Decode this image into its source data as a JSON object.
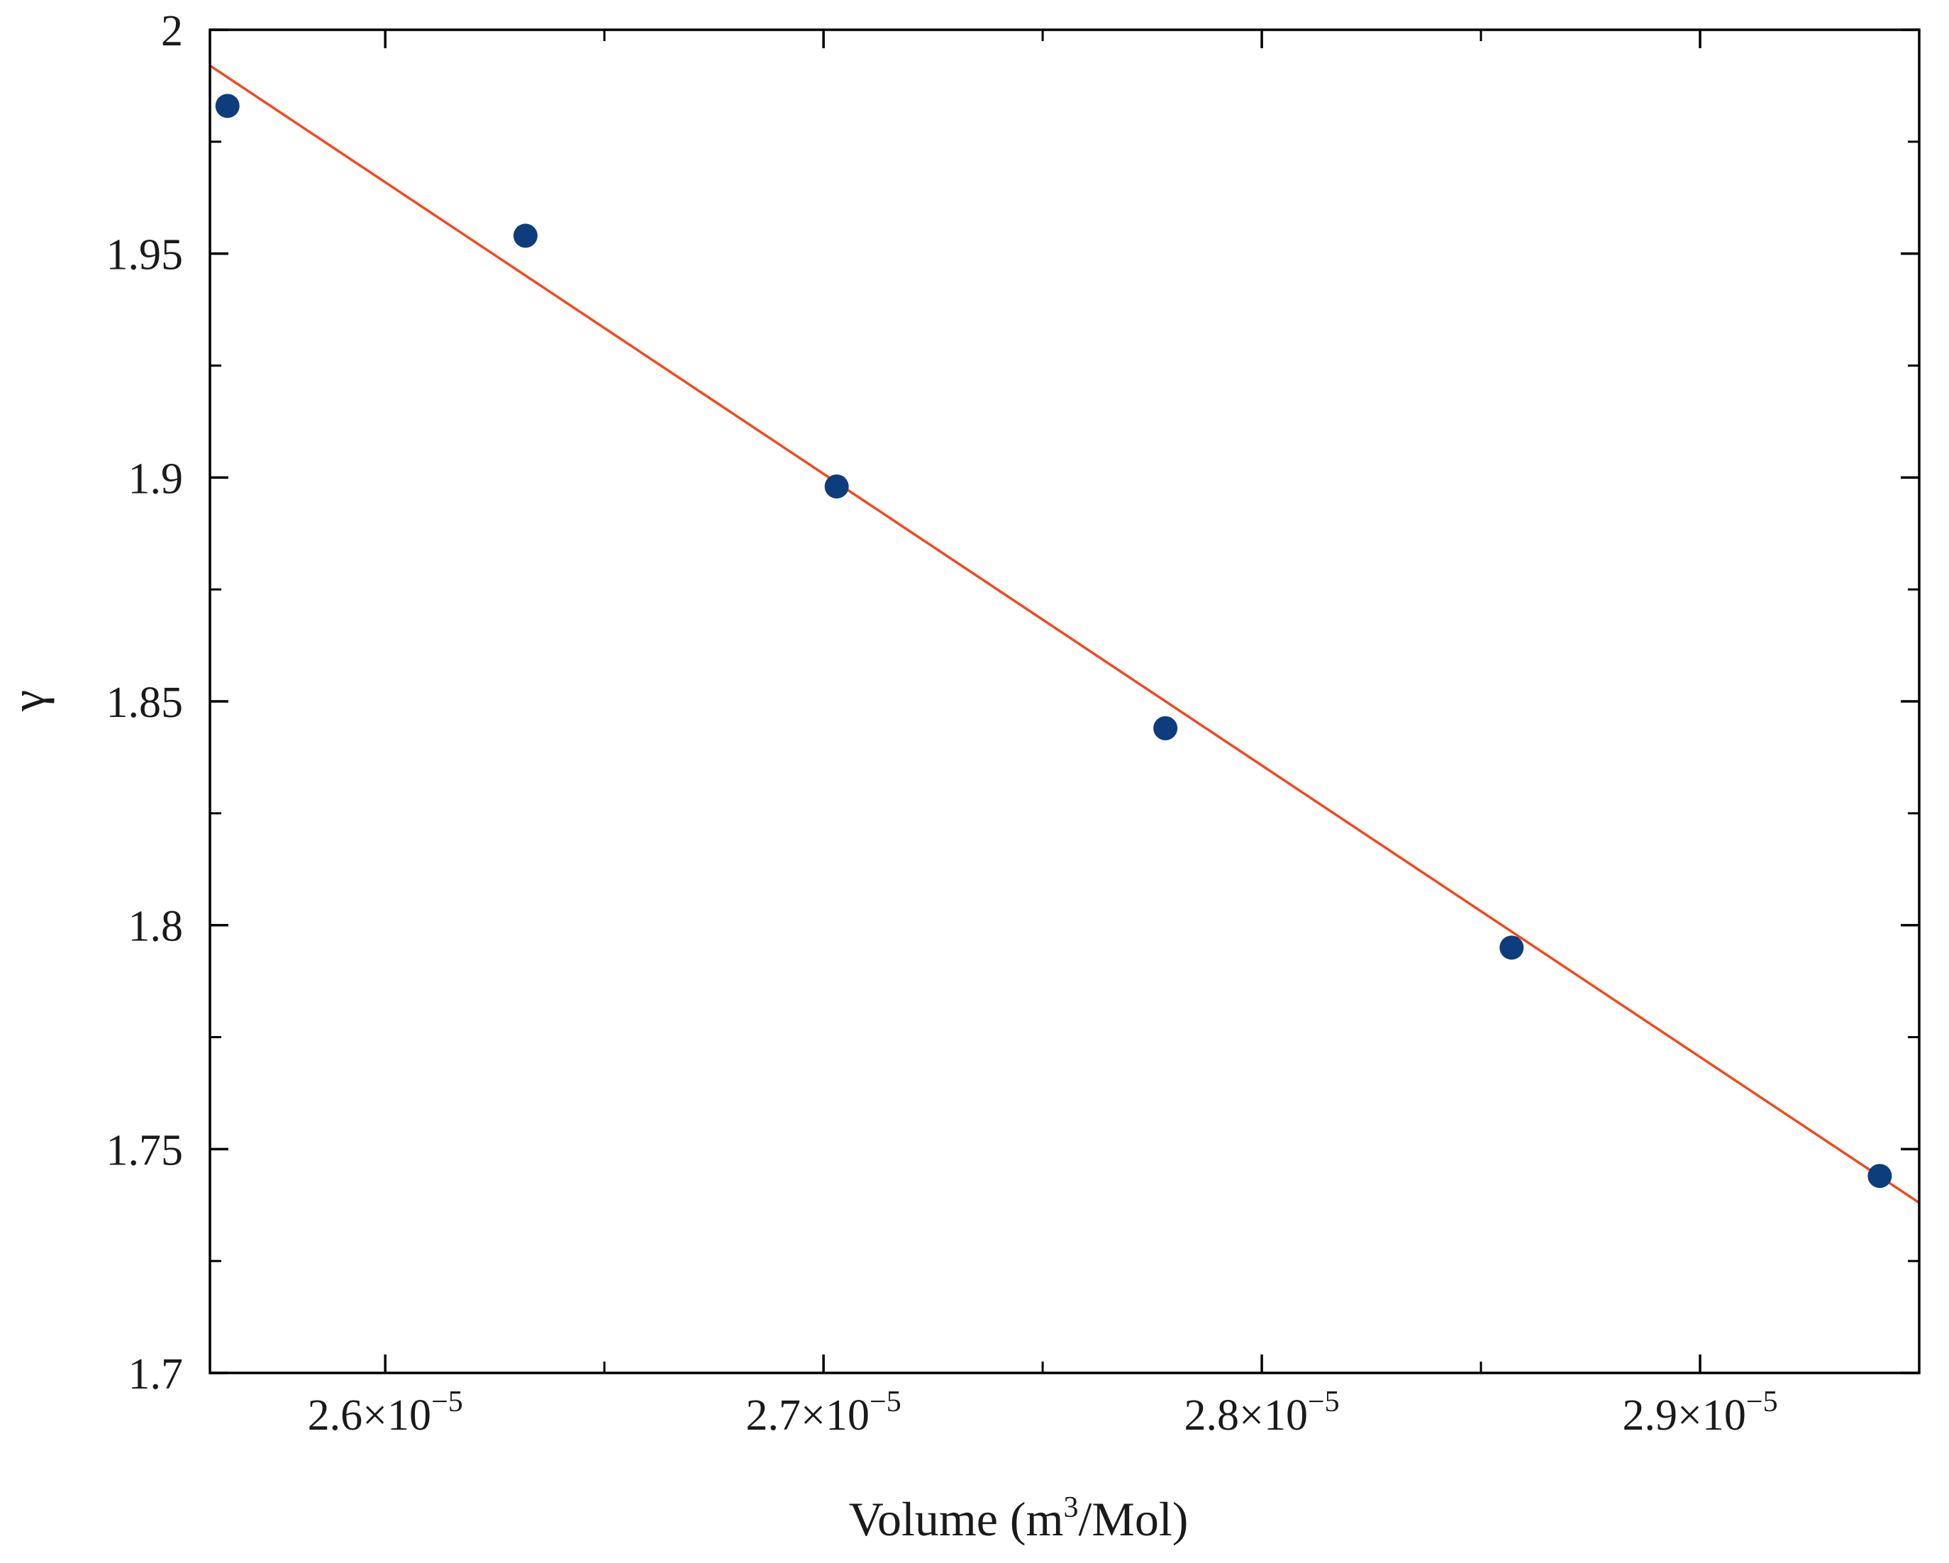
{
  "chart_data": {
    "type": "scatter",
    "xlabel": "Volume (m³/Mol)",
    "xlabel_parts": {
      "before": "Volume (m",
      "sup": "3",
      "after": "/Mol)"
    },
    "ylabel": "γ",
    "xlim": [
      2.56e-05,
      2.95e-05
    ],
    "ylim": [
      1.7,
      2.0
    ],
    "xticks": [
      {
        "value": 2.6e-05,
        "mantissa": "2.6",
        "exponent": "−5"
      },
      {
        "value": 2.7e-05,
        "mantissa": "2.7",
        "exponent": "−5"
      },
      {
        "value": 2.8e-05,
        "mantissa": "2.8",
        "exponent": "−5"
      },
      {
        "value": 2.9e-05,
        "mantissa": "2.9",
        "exponent": "−5"
      }
    ],
    "x_minor_ticks": [
      2.65e-05,
      2.75e-05,
      2.85e-05
    ],
    "yticks": [
      {
        "value": 1.7,
        "label": "1.7"
      },
      {
        "value": 1.75,
        "label": "1.75"
      },
      {
        "value": 1.8,
        "label": "1.8"
      },
      {
        "value": 1.85,
        "label": "1.85"
      },
      {
        "value": 1.9,
        "label": "1.9"
      },
      {
        "value": 1.95,
        "label": "1.95"
      },
      {
        "value": 2.0,
        "label": "2"
      }
    ],
    "y_minor_ticks": [
      1.725,
      1.775,
      1.825,
      1.875,
      1.925,
      1.975
    ],
    "grid": false,
    "series": [
      {
        "type": "scatter",
        "color": "#0d3d7c",
        "x": [
          2.564e-05,
          2.632e-05,
          2.703e-05,
          2.778e-05,
          2.857e-05,
          2.941e-05
        ],
        "y": [
          1.983,
          1.954,
          1.898,
          1.844,
          1.795,
          1.744
        ]
      },
      {
        "type": "line",
        "color": "#f04a1c",
        "x": [
          2.56e-05,
          2.95e-05
        ],
        "y": [
          1.992,
          1.738
        ]
      }
    ]
  }
}
